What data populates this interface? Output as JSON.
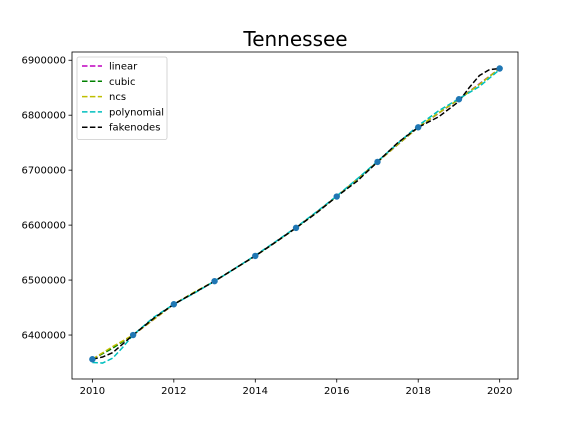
{
  "chart_data": {
    "type": "line",
    "title": "Tennessee",
    "xlabel": "",
    "ylabel": "",
    "xlim": [
      2009.5,
      2020.45
    ],
    "ylim": [
      6320000,
      6915000
    ],
    "x_ticks": [
      2010,
      2012,
      2014,
      2016,
      2018,
      2020
    ],
    "y_ticks": [
      6400000,
      6500000,
      6600000,
      6700000,
      6800000,
      6900000
    ],
    "x_tick_labels": [
      "2010",
      "2012",
      "2014",
      "2016",
      "2018",
      "2020"
    ],
    "y_tick_labels": [
      "6400000",
      "6500000",
      "6600000",
      "6700000",
      "6800000",
      "6900000"
    ],
    "grid": false,
    "legend_placement": "top-left",
    "points": {
      "x": [
        2010,
        2011,
        2012,
        2013,
        2014,
        2015,
        2016,
        2017,
        2018,
        2019,
        2020
      ],
      "y": [
        6356000,
        6400000,
        6456000,
        6498000,
        6544000,
        6595000,
        6652000,
        6715000,
        6778000,
        6829000,
        6885000
      ],
      "color": "#1f77b4"
    },
    "series": [
      {
        "name": "linear",
        "color": "#bf00bf",
        "x": [
          2010,
          2011,
          2012,
          2013,
          2014,
          2015,
          2016,
          2017,
          2018,
          2019,
          2020
        ],
        "y": [
          6356000,
          6400000,
          6456000,
          6498000,
          6544000,
          6595000,
          6652000,
          6715000,
          6778000,
          6829000,
          6885000
        ]
      },
      {
        "name": "cubic",
        "color": "#008000",
        "x": [
          2010,
          2010.5,
          2011,
          2011.5,
          2012,
          2012.5,
          2013,
          2013.5,
          2014,
          2014.5,
          2015,
          2015.5,
          2016,
          2016.5,
          2017,
          2017.5,
          2018,
          2018.5,
          2019,
          2019.5,
          2020
        ],
        "y": [
          6356000,
          6376000,
          6400000,
          6430000,
          6456000,
          6477000,
          6498000,
          6521000,
          6544000,
          6569000,
          6595000,
          6623000,
          6652000,
          6683000,
          6715000,
          6747000,
          6778000,
          6804000,
          6829000,
          6856000,
          6885000
        ]
      },
      {
        "name": "ncs",
        "color": "#bfbf00",
        "x": [
          2010,
          2010.5,
          2011,
          2011.5,
          2012,
          2012.5,
          2013,
          2013.5,
          2014,
          2014.5,
          2015,
          2015.5,
          2016,
          2016.5,
          2017,
          2017.5,
          2018,
          2018.5,
          2019,
          2019.5,
          2020
        ],
        "y": [
          6356000,
          6379000,
          6400000,
          6428000,
          6456000,
          6478000,
          6498000,
          6521000,
          6544000,
          6569000,
          6595000,
          6623000,
          6652000,
          6683000,
          6715000,
          6747000,
          6778000,
          6804000,
          6829000,
          6856000,
          6885000
        ]
      },
      {
        "name": "polynomial",
        "color": "#00bfbf",
        "x": [
          2010,
          2010.25,
          2010.5,
          2010.75,
          2011,
          2011.5,
          2012,
          2012.5,
          2013,
          2013.5,
          2014,
          2014.5,
          2015,
          2015.5,
          2016,
          2016.5,
          2017,
          2017.5,
          2018,
          2018.5,
          2019,
          2019.5,
          2020
        ],
        "y": [
          6350000,
          6349000,
          6358000,
          6378000,
          6400000,
          6432000,
          6456000,
          6476000,
          6498000,
          6521000,
          6545000,
          6570000,
          6596000,
          6624000,
          6653000,
          6684000,
          6716000,
          6749000,
          6781000,
          6808000,
          6830000,
          6852000,
          6883000
        ]
      },
      {
        "name": "fakenodes",
        "color": "#000000",
        "x": [
          2010,
          2010.25,
          2010.5,
          2010.75,
          2011,
          2011.5,
          2012,
          2012.5,
          2013,
          2013.5,
          2014,
          2014.5,
          2015,
          2015.5,
          2016,
          2016.5,
          2017,
          2017.5,
          2018,
          2018.5,
          2019,
          2019.25,
          2019.5,
          2019.75,
          2020
        ],
        "y": [
          6356000,
          6360000,
          6368000,
          6384000,
          6400000,
          6430000,
          6456000,
          6477000,
          6498000,
          6521000,
          6544000,
          6569000,
          6595000,
          6622000,
          6652000,
          6680000,
          6715000,
          6750000,
          6778000,
          6797000,
          6825000,
          6850000,
          6872000,
          6883000,
          6885000
        ]
      }
    ]
  }
}
